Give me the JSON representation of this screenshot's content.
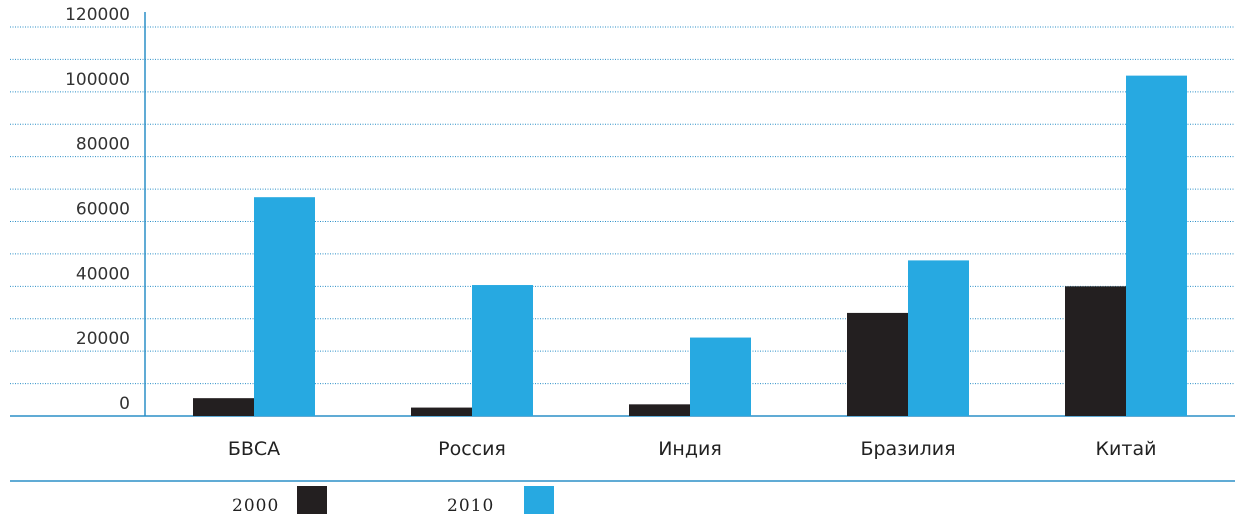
{
  "chart_data": {
    "type": "bar",
    "title": "",
    "xlabel": "",
    "ylabel": "",
    "categories": [
      "БВСА",
      "Россия",
      "Индия",
      "Бразилия",
      "Китай"
    ],
    "series": [
      {
        "name": "2000",
        "color": "#231f20",
        "values": [
          5500,
          2600,
          3600,
          31800,
          40000
        ]
      },
      {
        "name": "2010",
        "color": "#27a9e1",
        "values": [
          67500,
          40400,
          24200,
          48000,
          105000
        ]
      }
    ],
    "ylim": [
      0,
      120000
    ],
    "yticks": [
      "0",
      "20000",
      "40000",
      "60000",
      "80000",
      "100000",
      "120000"
    ],
    "grid": true,
    "legend": "bottom-left"
  }
}
